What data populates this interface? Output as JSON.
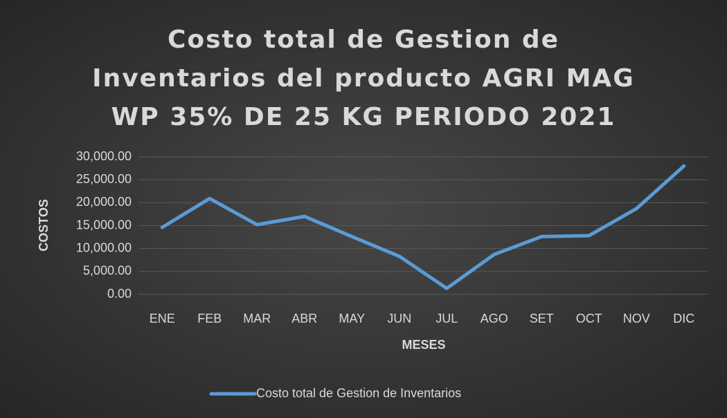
{
  "chart_data": {
    "type": "line",
    "title": "Costo total de Gestion de Inventarios del producto AGRI MAG WP 35% DE 25 KG PERIODO 2021",
    "x_label": "MESES",
    "y_label": "COSTOS",
    "categories": [
      "ENE",
      "FEB",
      "MAR",
      "ABR",
      "MAY",
      "JUN",
      "JUL",
      "AGO",
      "SET",
      "OCT",
      "NOV",
      "DIC"
    ],
    "series": [
      {
        "name": "Costo total de Gestion de Inventarios",
        "color": "#5b9bd5",
        "values": [
          14600,
          20900,
          15200,
          17000,
          12600,
          8300,
          1300,
          8700,
          12600,
          12800,
          18700,
          28000
        ]
      }
    ],
    "ylim": [
      0,
      30000
    ],
    "yticks": [
      {
        "value": 0,
        "label": "0.00"
      },
      {
        "value": 5000,
        "label": "5,000.00"
      },
      {
        "value": 10000,
        "label": "10,000.00"
      },
      {
        "value": 15000,
        "label": "15,000.00"
      },
      {
        "value": 20000,
        "label": "20,000.00"
      },
      {
        "value": 25000,
        "label": "25,000.00"
      },
      {
        "value": 30000,
        "label": "30,000.00"
      }
    ],
    "grid": true,
    "legend": "bottom"
  }
}
